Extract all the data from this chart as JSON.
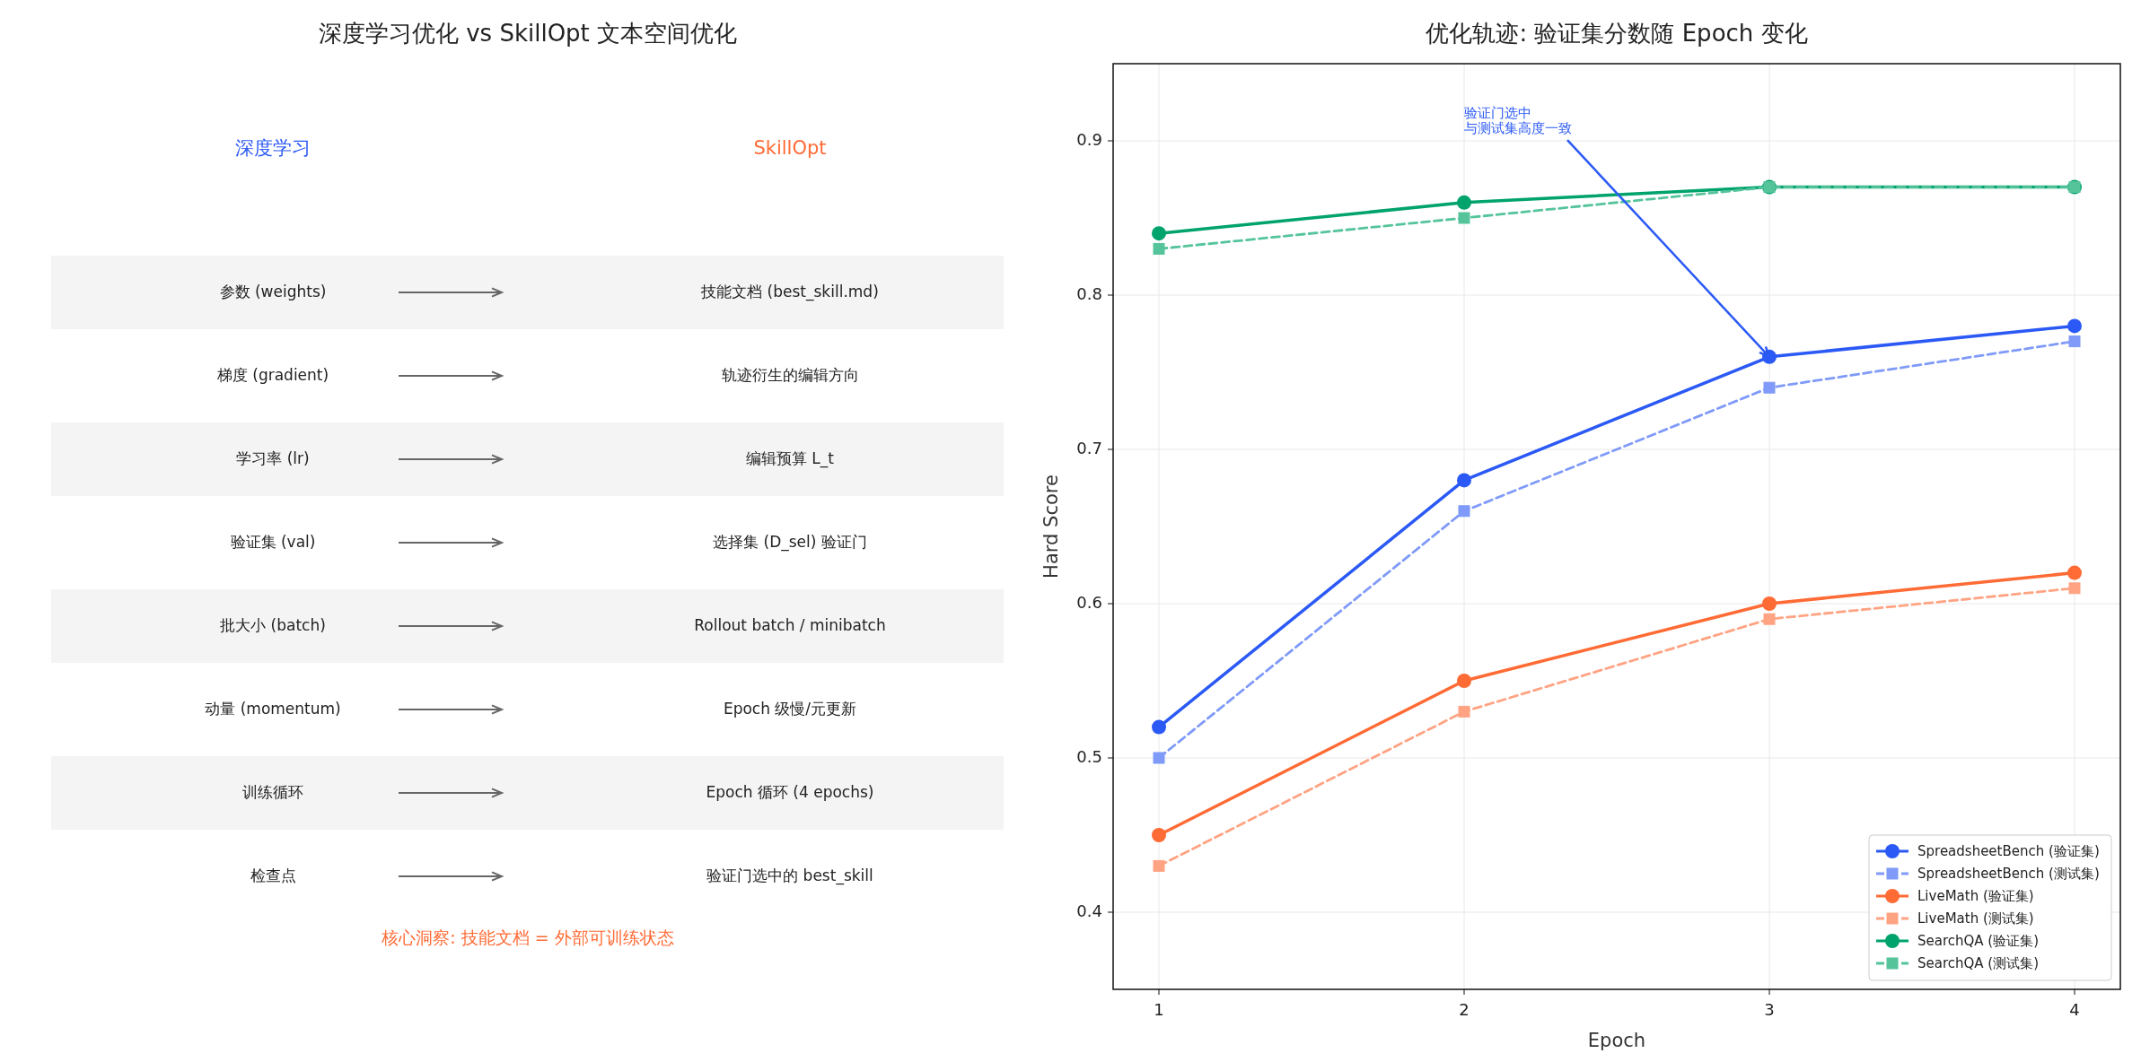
{
  "chart_data": [
    {
      "type": "other",
      "title": "深度学习优化 vs SkillOpt 文本空间优化",
      "annotations": [
        "深度学习",
        "SkillOpt",
        "参数 (weights)",
        "技能文档 (best_skill.md)",
        "梯度 (gradient)",
        "轨迹衍生的编辑方向",
        "学习率 (lr)",
        "编辑预算 L_t",
        "验证集 (val)",
        "选择集 (D_sel) 验证门",
        "批大小 (batch)",
        "Rollout batch / minibatch",
        "动量 (momentum)",
        "Epoch 级慢/元更新",
        "训练循环",
        "Epoch 循环 (4 epochs)",
        "检查点",
        "验证门选中的 best_skill",
        "核心洞察: 技能文档 = 外部可训练状态"
      ]
    },
    {
      "type": "line",
      "title": "优化轨迹: 验证集分数随 Epoch 变化",
      "xlabel": "Epoch",
      "ylabel": "Hard Score",
      "x": [
        1,
        2,
        3,
        4
      ],
      "xlim": [
        0.85,
        4.15
      ],
      "xticks": [
        1,
        2,
        3,
        4
      ],
      "ylim": [
        0.35,
        0.95
      ],
      "yticks": [
        0.4,
        0.5,
        0.6,
        0.7,
        0.8,
        0.9
      ],
      "grid": true,
      "legend": "bottom right",
      "annotations": [
        {
          "text": "验证门选中与测试集高度一致",
          "x": 3,
          "y": 0.76
        }
      ],
      "series": [
        {
          "name": "SpreadsheetBench (验证集)",
          "color": "#2b59f5",
          "marker": "circle",
          "line_style": "solid",
          "values": [
            0.52,
            0.68,
            0.76,
            0.78
          ]
        },
        {
          "name": "SpreadsheetBench (测试集)",
          "color": "#7f9af8",
          "marker": "square",
          "line_style": "dashed",
          "values": [
            0.5,
            0.66,
            0.74,
            0.77
          ]
        },
        {
          "name": "LiveMath (验证集)",
          "color": "#ff6b35",
          "marker": "circle",
          "line_style": "solid",
          "values": [
            0.45,
            0.55,
            0.6,
            0.62
          ]
        },
        {
          "name": "LiveMath (测试集)",
          "color": "#ffa383",
          "marker": "square",
          "line_style": "dashed",
          "values": [
            0.43,
            0.53,
            0.59,
            0.61
          ]
        },
        {
          "name": "SearchQA (验证集)",
          "color": "#00a36c",
          "marker": "circle",
          "line_style": "solid",
          "values": [
            0.84,
            0.86,
            0.87,
            0.87
          ]
        },
        {
          "name": "SearchQA (测试集)",
          "color": "#55c49b",
          "marker": "square",
          "line_style": "dashed",
          "values": [
            0.83,
            0.85,
            0.87,
            0.87
          ]
        }
      ]
    }
  ]
}
